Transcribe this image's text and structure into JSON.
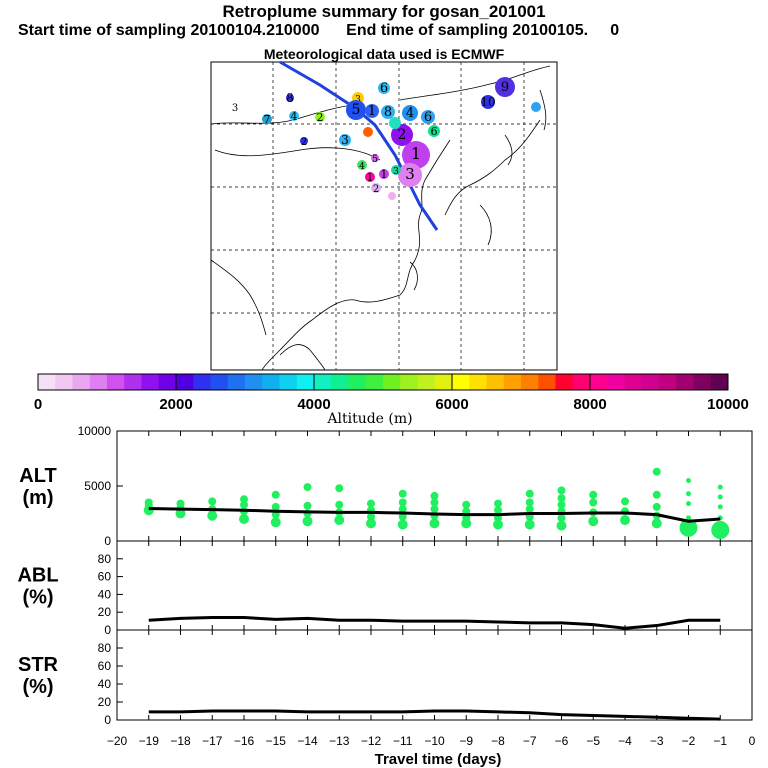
{
  "titles": {
    "line1": "Retroplume summary for gosan_201001",
    "line2": "Start time of sampling 20100104.210000      End time of sampling 20100105.     0",
    "line3": "Meteorological data used is ECMWF"
  },
  "colorbar": {
    "label": "Altitude  (m)",
    "ticks": [
      "0",
      "2000",
      "4000",
      "6000",
      "8000",
      "10000"
    ],
    "colors": [
      "#f6e0f6",
      "#f0c8f0",
      "#e8a8f0",
      "#e080f0",
      "#d050f0",
      "#b030f0",
      "#9010f0",
      "#7000e8",
      "#5000e0",
      "#3030f0",
      "#2050f0",
      "#2070f0",
      "#2090f0",
      "#10b0f0",
      "#10d0f0",
      "#10f0f0",
      "#10f0c0",
      "#10f090",
      "#20f060",
      "#40f040",
      "#70f020",
      "#a0f020",
      "#c0f020",
      "#e0f010",
      "#ffff00",
      "#ffe000",
      "#ffc000",
      "#ffa000",
      "#ff8000",
      "#ff5000",
      "#ff0030",
      "#ff0070",
      "#ff0090",
      "#f000a0",
      "#e00090",
      "#d00090",
      "#c00080",
      "#a00070",
      "#800060",
      "#600050"
    ]
  },
  "map": {
    "labels": [
      "3",
      "7",
      "4",
      "2",
      "8",
      "6",
      "3",
      "5",
      "1",
      "8",
      "4",
      "6",
      "6",
      "3",
      "2",
      "2",
      "1",
      "3",
      "1",
      "1",
      "2",
      "5",
      "4",
      "3",
      "9",
      "10"
    ]
  },
  "chart_data": [
    {
      "type": "line",
      "panel": "ALT",
      "ylabel": "ALT\n(m)",
      "ylabel_lines": [
        "ALT",
        "(m)"
      ],
      "ylim": [
        0,
        10000
      ],
      "yticks": [
        "0",
        "5000",
        "10000"
      ],
      "x": [
        -19,
        -18,
        -17,
        -16,
        -15,
        -14,
        -13,
        -12,
        -11,
        -10,
        -9,
        -8,
        -7,
        -6,
        -5,
        -4,
        -3,
        -2,
        -1
      ],
      "values": [
        2950,
        2900,
        2850,
        2800,
        2700,
        2650,
        2600,
        2600,
        2550,
        2450,
        2400,
        2400,
        2500,
        2500,
        2550,
        2550,
        2400,
        1800,
        2000
      ],
      "cluster_points": [
        {
          "x": -19,
          "y": [
            2800,
            3200,
            3500
          ]
        },
        {
          "x": -18,
          "y": [
            2500,
            3000,
            3400
          ]
        },
        {
          "x": -17,
          "y": [
            2300,
            2900,
            3600
          ]
        },
        {
          "x": -16,
          "y": [
            2000,
            2700,
            3300,
            3800
          ]
        },
        {
          "x": -15,
          "y": [
            1700,
            2400,
            3100,
            4200
          ]
        },
        {
          "x": -14,
          "y": [
            1800,
            2500,
            3200,
            4900
          ]
        },
        {
          "x": -13,
          "y": [
            1900,
            2600,
            3300,
            4800
          ]
        },
        {
          "x": -12,
          "y": [
            1600,
            2200,
            2800,
            3400
          ]
        },
        {
          "x": -11,
          "y": [
            1500,
            2200,
            2900,
            3500,
            4300
          ]
        },
        {
          "x": -10,
          "y": [
            1600,
            2300,
            2900,
            3500,
            4100
          ]
        },
        {
          "x": -9,
          "y": [
            1600,
            2100,
            2700,
            3300
          ]
        },
        {
          "x": -8,
          "y": [
            1500,
            2100,
            2800,
            3400
          ]
        },
        {
          "x": -7,
          "y": [
            1500,
            2200,
            2900,
            3500,
            4300
          ]
        },
        {
          "x": -6,
          "y": [
            1400,
            2100,
            2700,
            3300,
            3900,
            4600
          ]
        },
        {
          "x": -5,
          "y": [
            1800,
            2600,
            3500,
            4200
          ]
        },
        {
          "x": -4,
          "y": [
            1900,
            2700,
            3600
          ]
        },
        {
          "x": -3,
          "y": [
            1600,
            2300,
            3100,
            4200,
            6300
          ]
        },
        {
          "x": -2,
          "y": [
            1200,
            2100,
            3400,
            4300,
            5500
          ]
        },
        {
          "x": -1,
          "y": [
            1000,
            2100,
            3100,
            4000,
            4900
          ]
        }
      ]
    },
    {
      "type": "line",
      "panel": "ABL",
      "ylabel": "ABL\n(%)",
      "ylabel_lines": [
        "ABL",
        "(%)"
      ],
      "ylim": [
        0,
        100
      ],
      "yticks": [
        "0",
        "20",
        "40",
        "60",
        "80"
      ],
      "x": [
        -19,
        -18,
        -17,
        -16,
        -15,
        -14,
        -13,
        -12,
        -11,
        -10,
        -9,
        -8,
        -7,
        -6,
        -5,
        -4,
        -3,
        -2,
        -1
      ],
      "values": [
        11,
        13,
        14,
        14,
        12,
        13,
        11,
        11,
        10,
        10,
        10,
        9,
        8,
        8,
        6,
        2,
        5,
        11,
        11
      ]
    },
    {
      "type": "line",
      "panel": "STR",
      "ylabel": "STR\n(%)",
      "ylabel_lines": [
        "STR",
        "(%)"
      ],
      "ylim": [
        0,
        100
      ],
      "yticks": [
        "0",
        "20",
        "40",
        "60",
        "80"
      ],
      "x": [
        -19,
        -18,
        -17,
        -16,
        -15,
        -14,
        -13,
        -12,
        -11,
        -10,
        -9,
        -8,
        -7,
        -6,
        -5,
        -4,
        -3,
        -2,
        -1
      ],
      "values": [
        9,
        9,
        10,
        10,
        10,
        9,
        9,
        9,
        9,
        10,
        10,
        9,
        8,
        6,
        5,
        4,
        3,
        2,
        1
      ]
    }
  ],
  "xaxis": {
    "label": "Travel time (days)",
    "xlim": [
      -20,
      0
    ],
    "ticks": [
      "−20",
      "−19",
      "−18",
      "−17",
      "−16",
      "−15",
      "−14",
      "−13",
      "−12",
      "−11",
      "−10",
      "−9",
      "−8",
      "−7",
      "−6",
      "−5",
      "−4",
      "−3",
      "−2",
      "−1",
      "0"
    ]
  }
}
